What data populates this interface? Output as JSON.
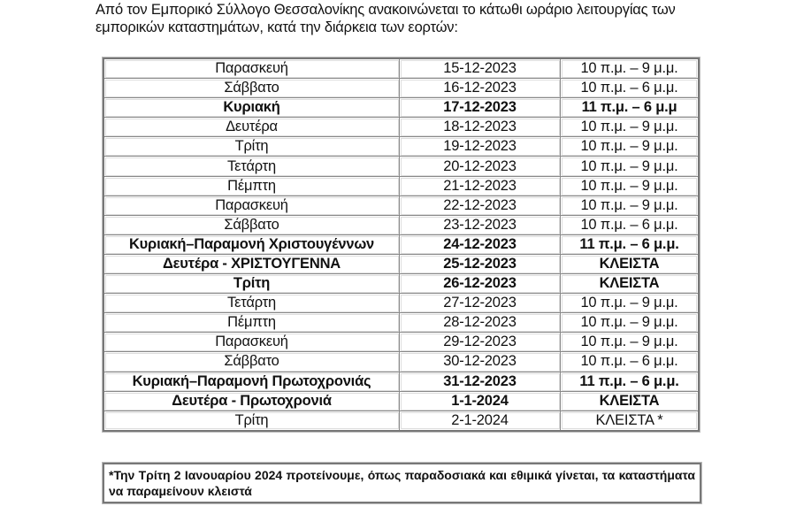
{
  "intro": "Από τον Εμπορικό Σύλλογο Θεσσαλονίκης ανακοινώνεται το κάτωθι ωράριο λειτουργίας των εμπορικών καταστημάτων, κατά την διάρκεια των εορτών:",
  "rows": [
    {
      "day": "Παρασκευή",
      "date": "15-12-2023",
      "hours": "10 π.μ. – 9 μ.μ.",
      "bold": false
    },
    {
      "day": "Σάββατο",
      "date": "16-12-2023",
      "hours": "10 π.μ. – 6 μ.μ.",
      "bold": false
    },
    {
      "day": "Κυριακή",
      "date": "17-12-2023",
      "hours": "11 π.μ. – 6 μ.μ",
      "bold": true
    },
    {
      "day": "Δευτέρα",
      "date": "18-12-2023",
      "hours": "10 π.μ. – 9 μ.μ.",
      "bold": false
    },
    {
      "day": "Τρίτη",
      "date": "19-12-2023",
      "hours": "10 π.μ. – 9 μ.μ.",
      "bold": false
    },
    {
      "day": "Τετάρτη",
      "date": "20-12-2023",
      "hours": "10 π.μ. – 9 μ.μ.",
      "bold": false
    },
    {
      "day": "Πέμπτη",
      "date": "21-12-2023",
      "hours": "10 π.μ. – 9 μ.μ.",
      "bold": false
    },
    {
      "day": "Παρασκευή",
      "date": "22-12-2023",
      "hours": "10 π.μ. – 9 μ.μ.",
      "bold": false
    },
    {
      "day": "Σάββατο",
      "date": "23-12-2023",
      "hours": "10 π.μ. – 6 μ.μ.",
      "bold": false
    },
    {
      "day": "Κυριακή–Παραμονή Χριστουγέννων",
      "date": "24-12-2023",
      "hours": "11 π.μ. – 6 μ.μ.",
      "bold": true
    },
    {
      "day": "Δευτέρα - ΧΡΙΣΤΟΥΓΕΝΝΑ",
      "date": "25-12-2023",
      "hours": "ΚΛΕΙΣΤΑ",
      "bold": true
    },
    {
      "day": "Τρίτη",
      "date": "26-12-2023",
      "hours": "ΚΛΕΙΣΤΑ",
      "bold": true
    },
    {
      "day": "Τετάρτη",
      "date": "27-12-2023",
      "hours": "10 π.μ. – 9 μ.μ.",
      "bold": false
    },
    {
      "day": "Πέμπτη",
      "date": "28-12-2023",
      "hours": "10 π.μ. – 9 μ.μ.",
      "bold": false
    },
    {
      "day": "Παρασκευή",
      "date": "29-12-2023",
      "hours": "10 π.μ. – 9 μ.μ.",
      "bold": false
    },
    {
      "day": "Σάββατο",
      "date": "30-12-2023",
      "hours": "10 π.μ. – 6 μ.μ.",
      "bold": false
    },
    {
      "day": "Κυριακή–Παραμονή Πρωτοχρονιάς",
      "date": "31-12-2023",
      "hours": "11 π.μ. – 6 μ.μ.",
      "bold": true
    },
    {
      "day": "Δευτέρα - Πρωτοχρονιά",
      "date": "1-1-2024",
      "hours": "ΚΛΕΙΣΤΑ",
      "bold": true
    },
    {
      "day": "Τρίτη",
      "date": "2-1-2024",
      "hours": "ΚΛΕΙΣΤΑ *",
      "bold": false
    }
  ],
  "note": "*Την Τρίτη 2 Ιανουαρίου 2024 προτείνουμε, όπως παραδοσιακά και εθιμικά γίνεται, τα καταστήματα να παραμείνουν κλειστά"
}
